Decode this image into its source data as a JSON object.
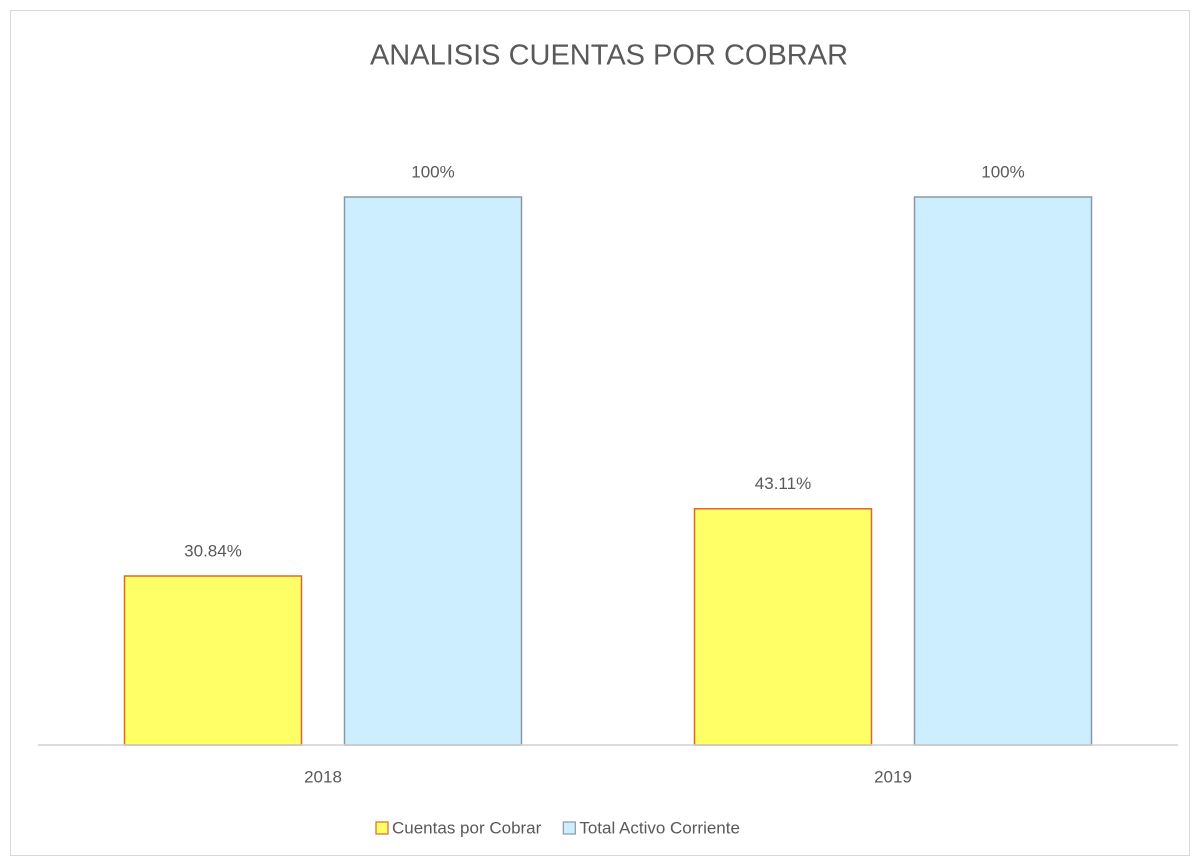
{
  "chart_data": {
    "type": "bar",
    "title": "ANALISIS CUENTAS POR COBRAR",
    "categories": [
      "2018",
      "2019"
    ],
    "series": [
      {
        "name": "Cuentas por Cobrar",
        "color": "#ffff66",
        "edge": "#e0662a",
        "values": [
          30.84,
          43.11
        ],
        "value_labels": [
          "30.84%",
          "43.11%"
        ]
      },
      {
        "name": "Total Activo Corriente",
        "color": "#cceeff",
        "edge": "#8a98a3",
        "values": [
          100,
          100
        ],
        "value_labels": [
          "100%",
          "100%"
        ]
      }
    ],
    "ylim": [
      0,
      100
    ]
  }
}
